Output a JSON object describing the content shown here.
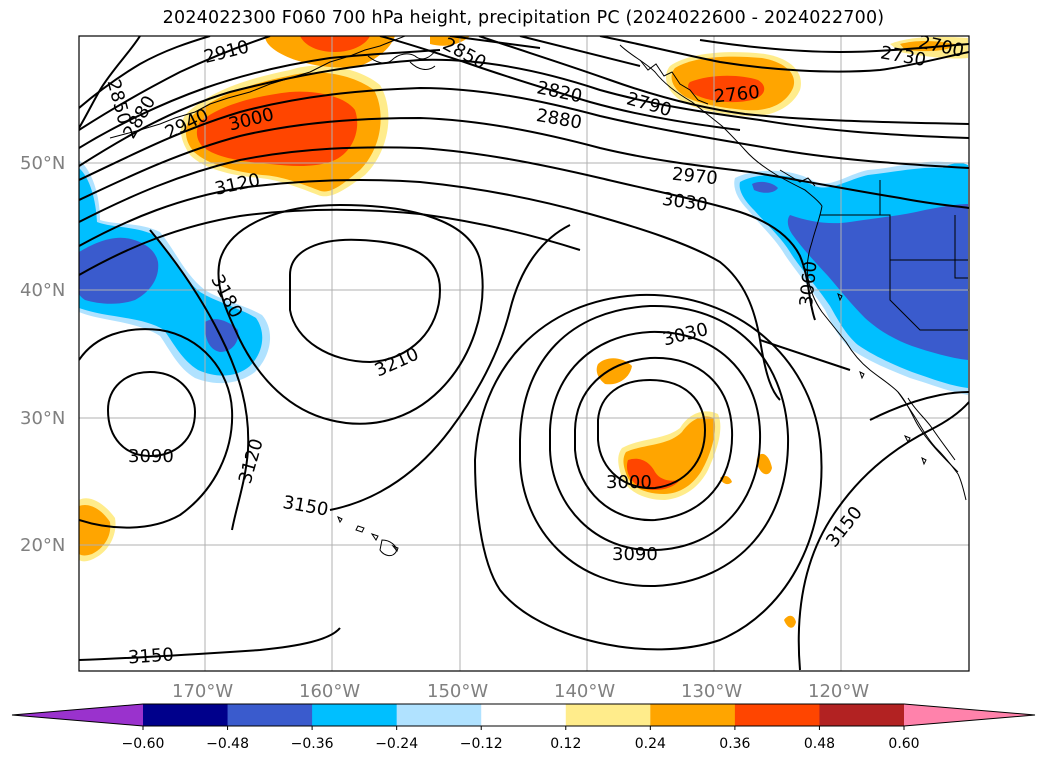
{
  "title": "2024022300 F060 700 hPa height, precipitation PC (2024022600 - 2024022700)",
  "latitude_labels": [
    "50°N",
    "40°N",
    "30°N",
    "20°N"
  ],
  "longitude_labels": [
    "170°W",
    "160°W",
    "150°W",
    "140°W",
    "130°W",
    "120°W"
  ],
  "contour_labels": [
    "2910",
    "2850",
    "2880",
    "2940",
    "3000",
    "3120",
    "2850",
    "2820",
    "2880",
    "2790",
    "2760",
    "2730",
    "2700",
    "2970",
    "3030",
    "3180",
    "3210",
    "3060",
    "3030",
    "3090",
    "3120",
    "3150",
    "3000",
    "3090",
    "3150",
    "3150"
  ],
  "colorbar": {
    "ticks": [
      "−0.60",
      "−0.48",
      "−0.36",
      "−0.24",
      "−0.12",
      "0.12",
      "0.24",
      "0.36",
      "0.48",
      "0.60"
    ],
    "colors": [
      "#9a32cd",
      "#00008b",
      "#3a5bcd",
      "#00bfff",
      "#b0e2ff",
      "#ffffff",
      "#ffec8b",
      "#ffa500",
      "#ff4500",
      "#b22222",
      "#ff82ab"
    ]
  },
  "colors": {
    "orange": "#ffa500",
    "red_orange": "#ff4500",
    "light_yellow": "#ffec8b",
    "deep_sky_blue": "#00bfff",
    "royal_blue": "#3a5bcd",
    "light_blue": "#b0e2ff"
  }
}
